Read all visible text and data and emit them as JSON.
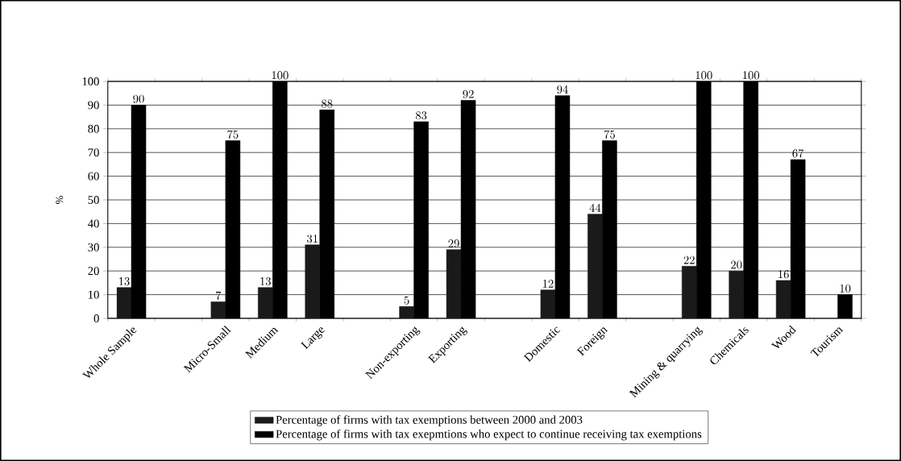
{
  "chart_data": {
    "type": "bar",
    "ylabel": "%",
    "categories": [
      "Whole Sample",
      null,
      "Micro-Small",
      "Medium",
      "Large",
      null,
      "Non-exporting",
      "Exporting",
      null,
      "Domestic",
      "Foreign",
      null,
      "Mining & quarrying",
      "Chemicals",
      "Wood",
      "Tourism"
    ],
    "series": [
      {
        "name": "Percentage of firms with tax exemptions between 2000 and 2003",
        "color": "#1a1a1a",
        "values": [
          13,
          null,
          7,
          13,
          31,
          null,
          5,
          29,
          null,
          12,
          44,
          null,
          22,
          20,
          16,
          null
        ]
      },
      {
        "name": "Percentage of firms with tax exepmtions who expect to continue receiving tax exemptions",
        "color": "#000000",
        "values": [
          90,
          null,
          75,
          100,
          88,
          null,
          83,
          92,
          null,
          94,
          75,
          null,
          100,
          100,
          67,
          10
        ]
      }
    ],
    "ylim": [
      0,
      100
    ],
    "yticks": [
      0,
      10,
      20,
      30,
      40,
      50,
      60,
      70,
      80,
      90,
      100
    ],
    "grid": "y",
    "legend": "bottom",
    "data_labels": true
  }
}
